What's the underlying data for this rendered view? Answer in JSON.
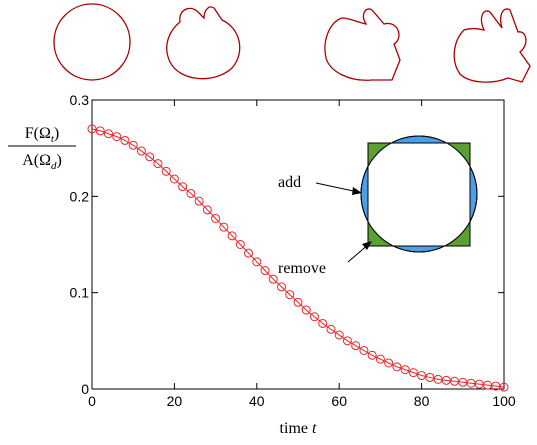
{
  "chart_data": {
    "type": "line",
    "y_label": {
      "numerator": [
        "F(Ω",
        "t",
        ")"
      ],
      "denominator": [
        "A(Ω",
        "d",
        ")"
      ]
    },
    "x_label": [
      "time ",
      "t"
    ],
    "annotations": {
      "add": "add",
      "remove": "remove"
    },
    "x": [
      0,
      2,
      4,
      6,
      8,
      10,
      12,
      14,
      16,
      18,
      20,
      22,
      24,
      26,
      28,
      30,
      32,
      34,
      36,
      38,
      40,
      42,
      44,
      46,
      48,
      50,
      52,
      54,
      56,
      58,
      60,
      62,
      64,
      66,
      68,
      70,
      72,
      74,
      76,
      78,
      80,
      82,
      84,
      86,
      88,
      90,
      92,
      94,
      96,
      98,
      100
    ],
    "series": [
      {
        "color": "#e8262b",
        "values": [
          0.27,
          0.268,
          0.265,
          0.262,
          0.258,
          0.253,
          0.247,
          0.241,
          0.234,
          0.226,
          0.218,
          0.21,
          0.203,
          0.195,
          0.186,
          0.177,
          0.168,
          0.159,
          0.15,
          0.141,
          0.132,
          0.123,
          0.114,
          0.106,
          0.098,
          0.09,
          0.082,
          0.075,
          0.068,
          0.062,
          0.056,
          0.05,
          0.045,
          0.04,
          0.035,
          0.031,
          0.027,
          0.023,
          0.02,
          0.017,
          0.014,
          0.012,
          0.01,
          0.009,
          0.008,
          0.007,
          0.006,
          0.005,
          0.004,
          0.003,
          0.002
        ]
      }
    ],
    "xlim": [
      0,
      100
    ],
    "xticks": [
      0,
      20,
      40,
      60,
      80,
      100
    ],
    "ylim": [
      0,
      0.3
    ],
    "yticks": [
      0,
      0.1,
      0.2,
      0.3
    ]
  }
}
